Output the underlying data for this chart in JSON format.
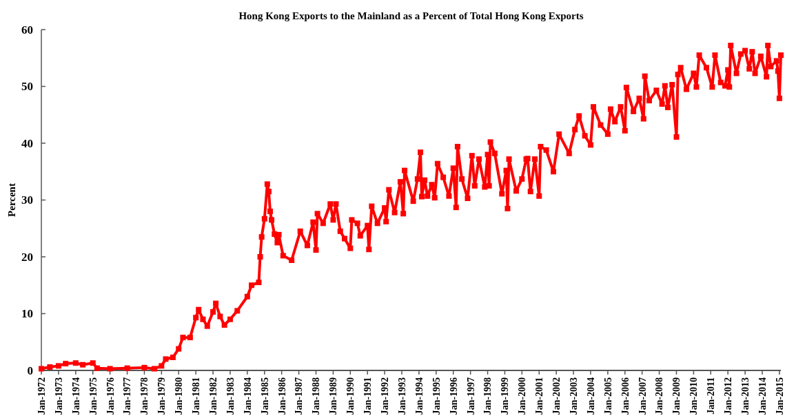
{
  "chart_data": {
    "type": "line",
    "title": "Hong Kong Exports to the Mainland as a Percent of Total Hong Kong Exports",
    "ylabel": "Percent",
    "x": [
      "1972-01",
      "1972-07",
      "1973-01",
      "1973-06",
      "1974-01",
      "1974-06",
      "1975-01",
      "1975-04",
      "1976-01",
      "1977-01",
      "1978-01",
      "1978-08",
      "1979-01",
      "1979-04",
      "1979-09",
      "1980-01",
      "1980-04",
      "1980-09",
      "1981-01",
      "1981-03",
      "1981-06",
      "1981-09",
      "1982-01",
      "1982-03",
      "1982-06",
      "1982-09",
      "1983-01",
      "1983-06",
      "1984-01",
      "1984-04",
      "1984-09",
      "1984-10",
      "1984-11",
      "1985-01",
      "1985-03",
      "1985-04",
      "1985-05",
      "1985-06",
      "1985-08",
      "1985-10",
      "1985-11",
      "1986-02",
      "1986-08",
      "1987-02",
      "1987-07",
      "1987-11",
      "1988-01",
      "1988-02",
      "1988-06",
      "1988-11",
      "1989-01",
      "1989-03",
      "1989-06",
      "1989-09",
      "1990-01",
      "1990-02",
      "1990-06",
      "1990-08",
      "1991-01",
      "1991-02",
      "1991-04",
      "1991-08",
      "1992-01",
      "1992-02",
      "1992-04",
      "1992-08",
      "1992-12",
      "1993-02",
      "1993-03",
      "1993-09",
      "1993-12",
      "1994-02",
      "1994-03",
      "1994-05",
      "1994-07",
      "1994-10",
      "1994-12",
      "1995-02",
      "1995-06",
      "1995-10",
      "1996-01",
      "1996-03",
      "1996-04",
      "1996-07",
      "1996-11",
      "1997-02",
      "1997-04",
      "1997-07",
      "1997-11",
      "1998-01",
      "1998-02",
      "1998-03",
      "1998-06",
      "1998-11",
      "1999-02",
      "1999-03",
      "1999-04",
      "1999-09",
      "2000-01",
      "2000-04",
      "2000-05",
      "2000-07",
      "2000-10",
      "2001-01",
      "2001-02",
      "2001-06",
      "2001-11",
      "2002-03",
      "2002-10",
      "2003-02",
      "2003-05",
      "2003-09",
      "2004-01",
      "2004-03",
      "2004-08",
      "2005-01",
      "2005-03",
      "2005-06",
      "2005-10",
      "2006-01",
      "2006-02",
      "2006-07",
      "2006-11",
      "2007-02",
      "2007-03",
      "2007-06",
      "2007-11",
      "2008-03",
      "2008-05",
      "2008-07",
      "2008-10",
      "2009-01",
      "2009-02",
      "2009-04",
      "2009-08",
      "2010-01",
      "2010-03",
      "2010-05",
      "2010-10",
      "2011-02",
      "2011-04",
      "2011-08",
      "2011-11",
      "2012-01",
      "2012-02",
      "2012-03",
      "2012-07",
      "2012-10",
      "2013-01",
      "2013-04",
      "2013-06",
      "2013-08",
      "2013-12",
      "2014-04",
      "2014-05",
      "2014-07",
      "2014-11",
      "2014-12",
      "2015-01",
      "2015-02"
    ],
    "series": [
      {
        "color": "#ff0000",
        "values": [
          0.3,
          0.6,
          0.8,
          1.2,
          1.3,
          1.0,
          1.3,
          0.4,
          0.3,
          0.4,
          0.5,
          0.3,
          0.8,
          2.0,
          2.3,
          3.8,
          5.8,
          5.8,
          9.3,
          10.7,
          9.0,
          7.8,
          10.3,
          11.8,
          9.5,
          8.0,
          9.0,
          10.5,
          13.0,
          15.0,
          15.5,
          20.0,
          23.5,
          26.7,
          32.8,
          31.5,
          28.0,
          26.5,
          24.0,
          22.5,
          23.9,
          20.2,
          19.4,
          24.5,
          22.0,
          26.1,
          21.2,
          27.6,
          25.9,
          29.3,
          26.5,
          29.3,
          24.5,
          23.2,
          21.5,
          26.5,
          25.9,
          23.7,
          25.5,
          21.3,
          28.9,
          25.9,
          28.6,
          26.2,
          31.8,
          27.8,
          33.2,
          27.6,
          35.2,
          29.8,
          33.7,
          38.4,
          30.6,
          33.5,
          30.7,
          32.7,
          30.4,
          36.4,
          34.0,
          30.7,
          35.6,
          28.7,
          39.4,
          33.7,
          30.3,
          37.8,
          32.5,
          37.2,
          32.3,
          38.0,
          32.5,
          40.2,
          38.2,
          31.1,
          35.2,
          28.5,
          37.2,
          31.6,
          33.7,
          37.2,
          37.3,
          31.5,
          37.2,
          30.7,
          39.4,
          38.8,
          35.0,
          41.6,
          38.2,
          42.4,
          44.8,
          41.3,
          39.7,
          46.4,
          43.2,
          41.6,
          46.0,
          43.8,
          46.4,
          42.2,
          49.8,
          45.6,
          47.9,
          44.3,
          51.8,
          47.5,
          49.3,
          46.9,
          50.1,
          46.3,
          50.3,
          41.1,
          52.1,
          53.3,
          49.5,
          52.3,
          49.9,
          55.5,
          53.3,
          49.9,
          55.5,
          50.7,
          50.1,
          52.9,
          49.9,
          57.2,
          52.3,
          55.7,
          56.3,
          53.1,
          56.1,
          52.3,
          55.3,
          51.7,
          57.2,
          53.5,
          54.5,
          52.7,
          47.9,
          55.5
        ]
      }
    ],
    "xlim": [
      "1972-01",
      "2015-02"
    ],
    "xticks": [
      {
        "value": "1972-01",
        "label": "Jan-1972"
      },
      {
        "value": "1973-01",
        "label": "Jan-1973"
      },
      {
        "value": "1974-01",
        "label": "Jan-1974"
      },
      {
        "value": "1975-01",
        "label": "Jan-1975"
      },
      {
        "value": "1976-01",
        "label": "Jan-1976"
      },
      {
        "value": "1977-01",
        "label": "Jan-1977"
      },
      {
        "value": "1978-01",
        "label": "Jan-1978"
      },
      {
        "value": "1979-01",
        "label": "Jan-1979"
      },
      {
        "value": "1980-01",
        "label": "Jan-1980"
      },
      {
        "value": "1981-01",
        "label": "Jan-1981"
      },
      {
        "value": "1982-01",
        "label": "Jan-1982"
      },
      {
        "value": "1983-01",
        "label": "Jan-1983"
      },
      {
        "value": "1984-01",
        "label": "Jan-1984"
      },
      {
        "value": "1985-01",
        "label": "Jan-1985"
      },
      {
        "value": "1986-01",
        "label": "Jan-1986"
      },
      {
        "value": "1987-01",
        "label": "Jan-1987"
      },
      {
        "value": "1988-01",
        "label": "Jan-1988"
      },
      {
        "value": "1989-01",
        "label": "Jan-1989"
      },
      {
        "value": "1990-01",
        "label": "Jan-1990"
      },
      {
        "value": "1991-01",
        "label": "Jan-1991"
      },
      {
        "value": "1992-01",
        "label": "Jan-1992"
      },
      {
        "value": "1993-01",
        "label": "Jan-1993"
      },
      {
        "value": "1994-01",
        "label": "Jan-1994"
      },
      {
        "value": "1995-01",
        "label": "Jan-1995"
      },
      {
        "value": "1996-01",
        "label": "Jan-1996"
      },
      {
        "value": "1997-01",
        "label": "Jan-1997"
      },
      {
        "value": "1998-01",
        "label": "Jan-1998"
      },
      {
        "value": "1999-01",
        "label": "Jan-1999"
      },
      {
        "value": "2000-01",
        "label": "Jan-2000"
      },
      {
        "value": "2001-01",
        "label": "Jan-2001"
      },
      {
        "value": "2002-01",
        "label": "Jan-2002"
      },
      {
        "value": "2003-01",
        "label": "Jan-2003"
      },
      {
        "value": "2004-01",
        "label": "Jan-2004"
      },
      {
        "value": "2005-01",
        "label": "Jan-2005"
      },
      {
        "value": "2006-01",
        "label": "Jan-2006"
      },
      {
        "value": "2007-01",
        "label": "Jan-2007"
      },
      {
        "value": "2008-01",
        "label": "Jan-2008"
      },
      {
        "value": "2009-01",
        "label": "Jan-2009"
      },
      {
        "value": "2010-01",
        "label": "Jan-2010"
      },
      {
        "value": "2011-01",
        "label": "Jan-2011"
      },
      {
        "value": "2012-01",
        "label": "Jan-2012"
      },
      {
        "value": "2013-01",
        "label": "Jan-2013"
      },
      {
        "value": "2014-01",
        "label": "Jan-2014"
      },
      {
        "value": "2015-01",
        "label": "Jan-2015"
      }
    ],
    "ylim": [
      0,
      60
    ],
    "yticks": [
      0,
      10,
      20,
      30,
      40,
      50,
      60
    ],
    "grid": false,
    "marker": "square",
    "line_style": "solid"
  }
}
